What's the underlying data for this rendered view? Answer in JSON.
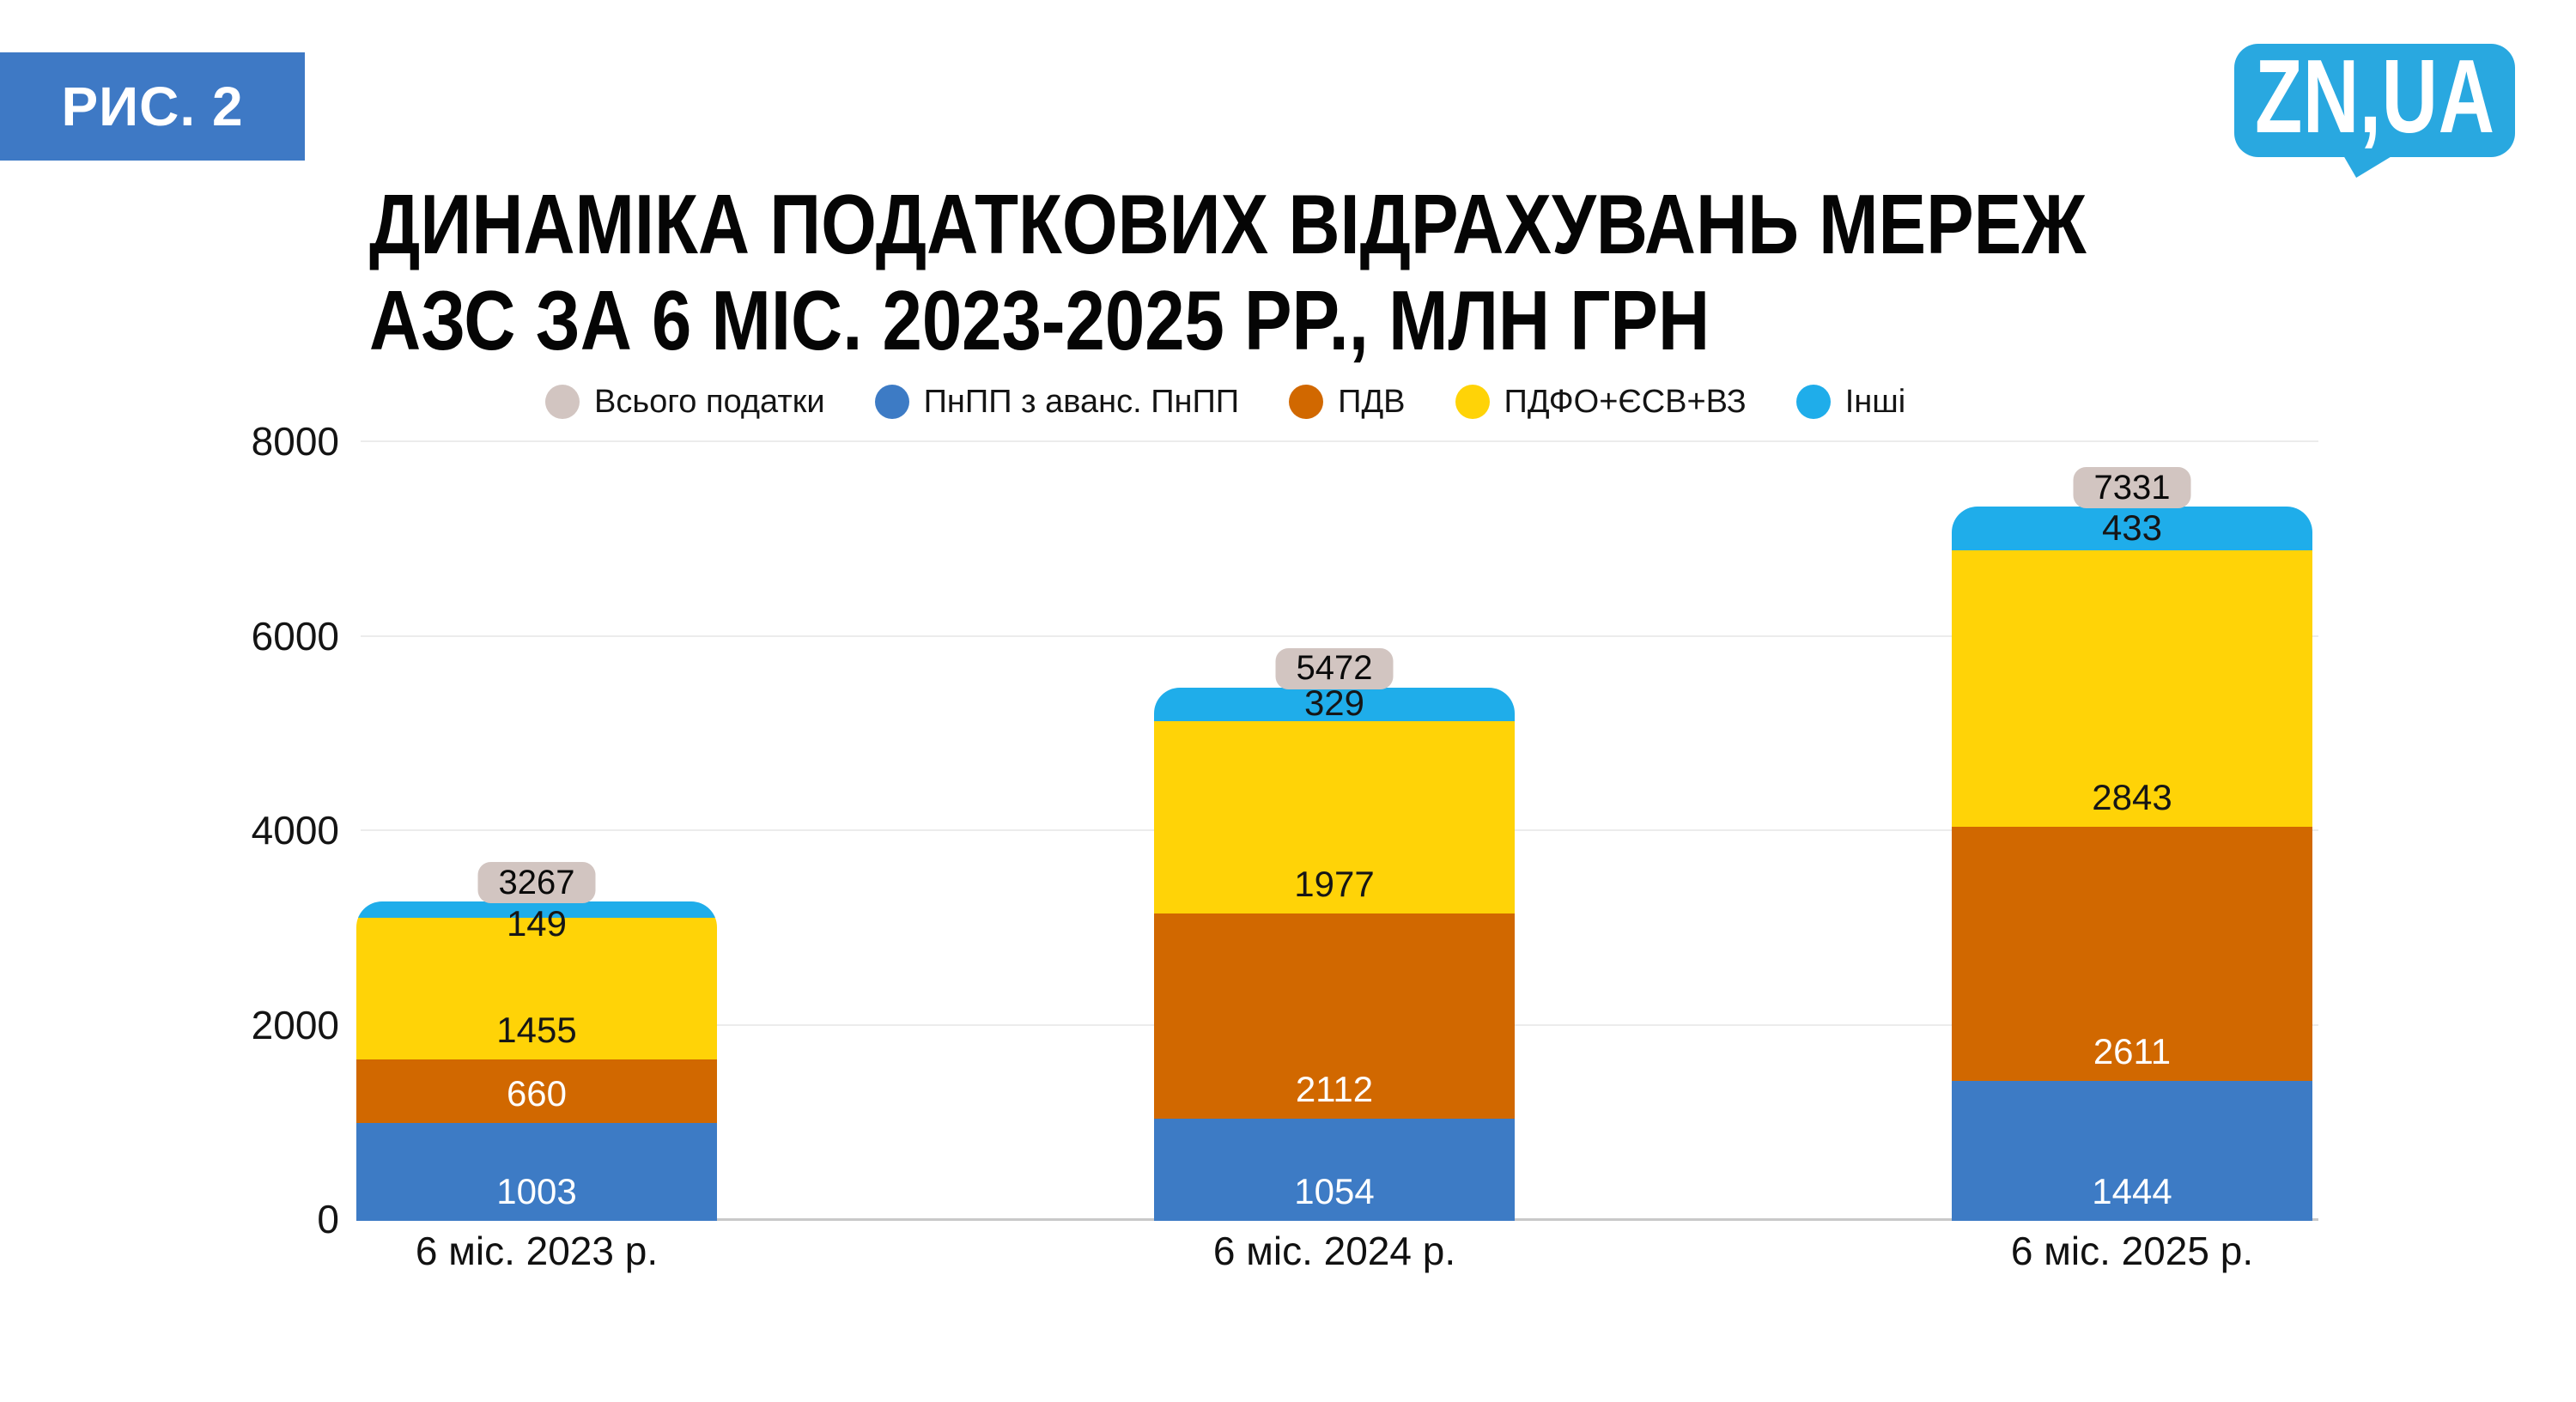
{
  "figure_label": "РИС. 2",
  "logo_text": "ZN,UA",
  "title": "ДИНАМІКА ПОДАТКОВИХ ВІДРАХУВАНЬ МЕРЕЖ\nАЗС ЗА 6 МІС. 2023-2025 РР., МЛН ГРН",
  "colors": {
    "background": "#FFFFFF",
    "figure_badge": "#3E79C5",
    "logo": "#29A8E0",
    "grid": "#ECECEC",
    "axis": "#C9C9C9",
    "axis_text": "#141414",
    "total_badge": "#D2C5C1"
  },
  "chart_data": {
    "type": "bar",
    "stacked": true,
    "title": "ДИНАМІКА ПОДАТКОВИХ ВІДРАХУВАНЬ МЕРЕЖ АЗС ЗА 6 МІС. 2023-2025 РР., МЛН ГРН",
    "unit": "млн грн",
    "categories": [
      "6 міс. 2023 р.",
      "6 міс. 2024 р.",
      "6 міс. 2025 р."
    ],
    "series": [
      {
        "name": "ПнПП з аванс. ПнПП",
        "color": "#3D7BC5",
        "label_color": "#FFFFFF",
        "values": [
          1003,
          1054,
          1444
        ]
      },
      {
        "name": "ПДВ",
        "color": "#D16800",
        "label_color": "#FFFFFF",
        "values": [
          660,
          2112,
          2611
        ]
      },
      {
        "name": "ПДФО+ЄСВ+ВЗ",
        "color": "#FFD307",
        "label_color": "#161616",
        "values": [
          1455,
          1977,
          2843
        ]
      },
      {
        "name": "Інші",
        "color": "#1FADEA",
        "label_color": "#161616",
        "values": [
          149,
          329,
          433
        ]
      }
    ],
    "totals": {
      "name": "Всього податки",
      "color": "#D2C5C1",
      "values": [
        3267,
        5472,
        7331
      ]
    },
    "y_ticks": [
      0,
      2000,
      4000,
      6000,
      8000
    ],
    "ylim": [
      0,
      8000
    ],
    "grid": "horizontal",
    "legend_position": "top"
  }
}
